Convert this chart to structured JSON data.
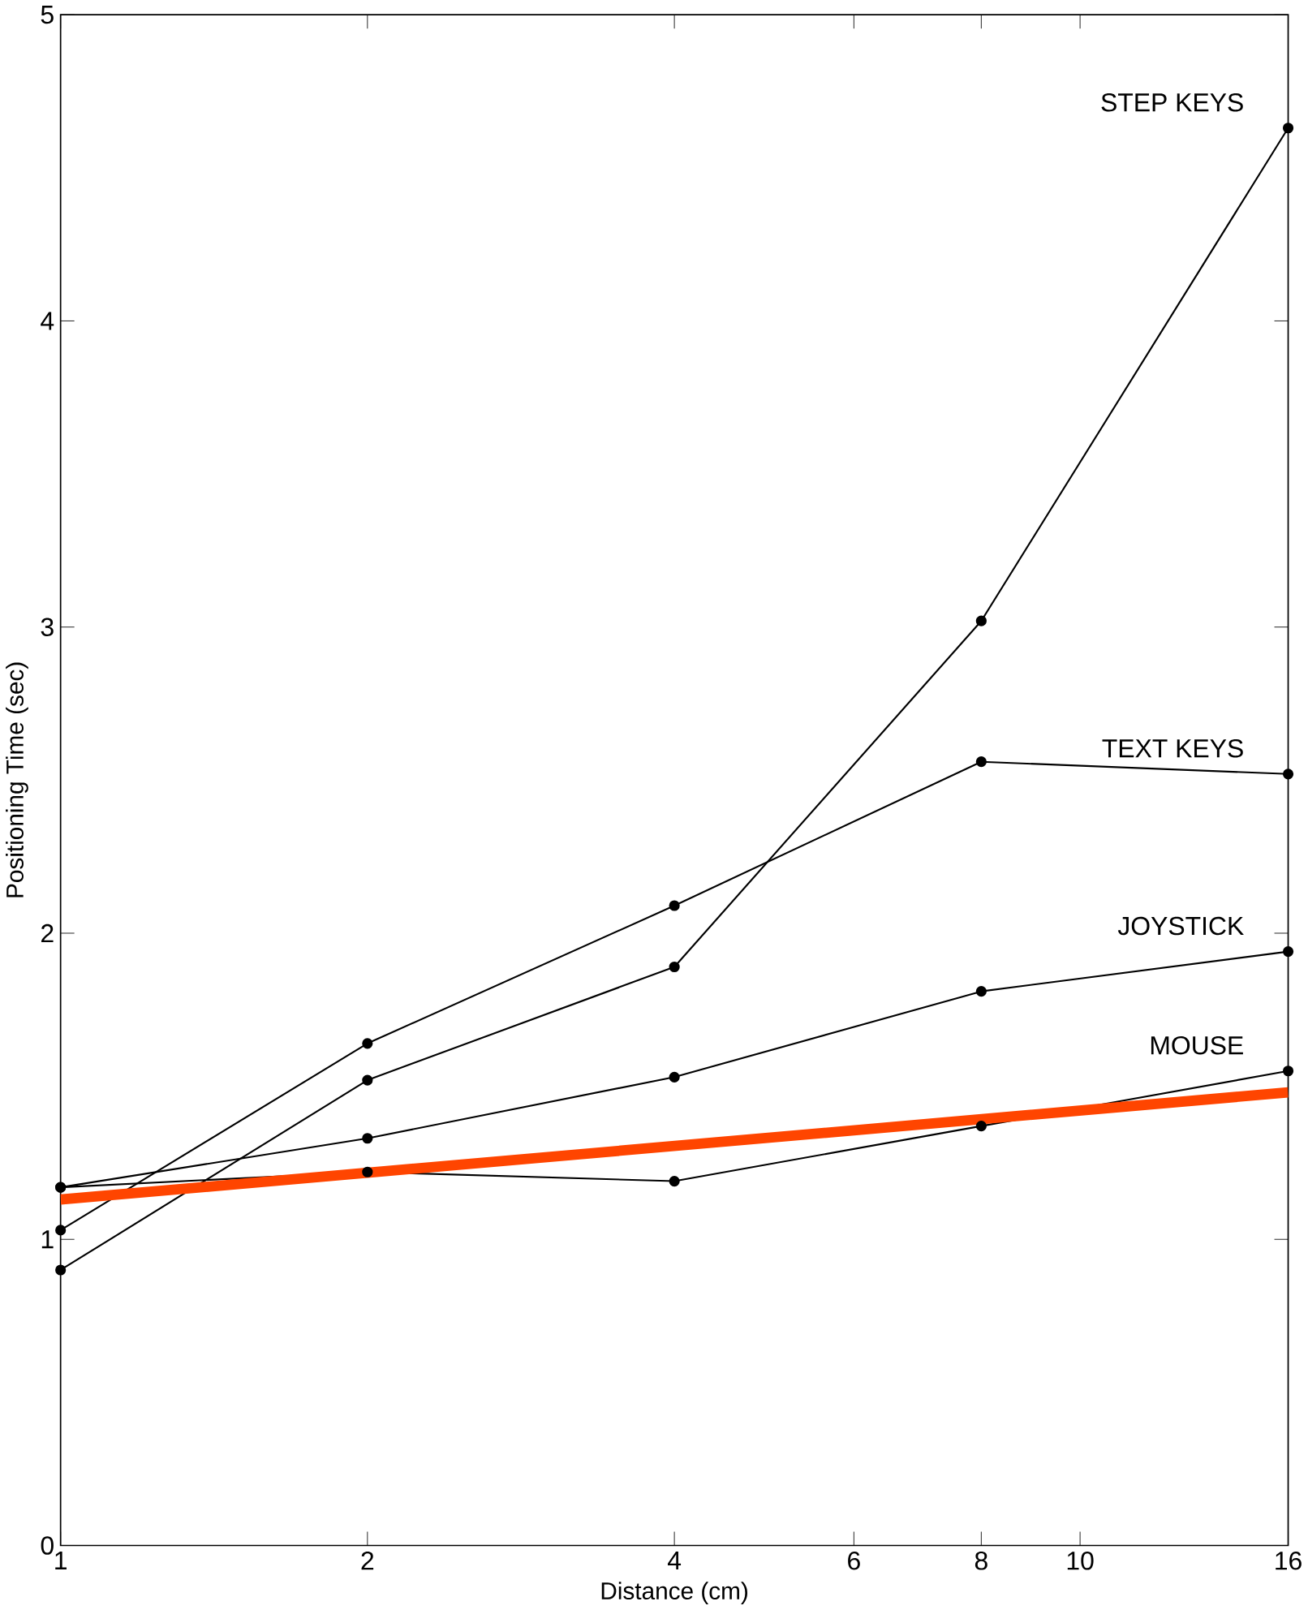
{
  "chart_data": {
    "type": "line",
    "xlabel": "Distance (cm)",
    "ylabel": "Positioning Time (sec)",
    "log": "x",
    "xlim": [
      1,
      16
    ],
    "ylim": [
      0,
      5
    ],
    "xticks": [
      1,
      2,
      4,
      6,
      8,
      10,
      16
    ],
    "yticks": [
      0,
      1,
      2,
      3,
      4,
      5
    ],
    "grid": false,
    "marker": "circle",
    "line_style": "solid",
    "x": [
      1,
      2,
      4,
      8,
      16
    ],
    "series": [
      {
        "name": "STEP KEYS",
        "color": "#000000",
        "values": [
          0.9,
          1.52,
          1.89,
          3.02,
          4.63
        ]
      },
      {
        "name": "TEXT KEYS",
        "color": "#000000",
        "values": [
          1.03,
          1.64,
          2.09,
          2.56,
          2.52
        ]
      },
      {
        "name": "JOYSTICK",
        "color": "#000000",
        "values": [
          1.17,
          1.33,
          1.53,
          1.81,
          1.94
        ]
      },
      {
        "name": "MOUSE",
        "color": "#000000",
        "values": [
          1.17,
          1.22,
          1.19,
          1.37,
          1.55
        ]
      },
      {
        "type": "line",
        "color": "#ff4500",
        "marker": "none",
        "x": [
          1,
          16
        ],
        "values": [
          1.13,
          1.48
        ]
      }
    ]
  }
}
